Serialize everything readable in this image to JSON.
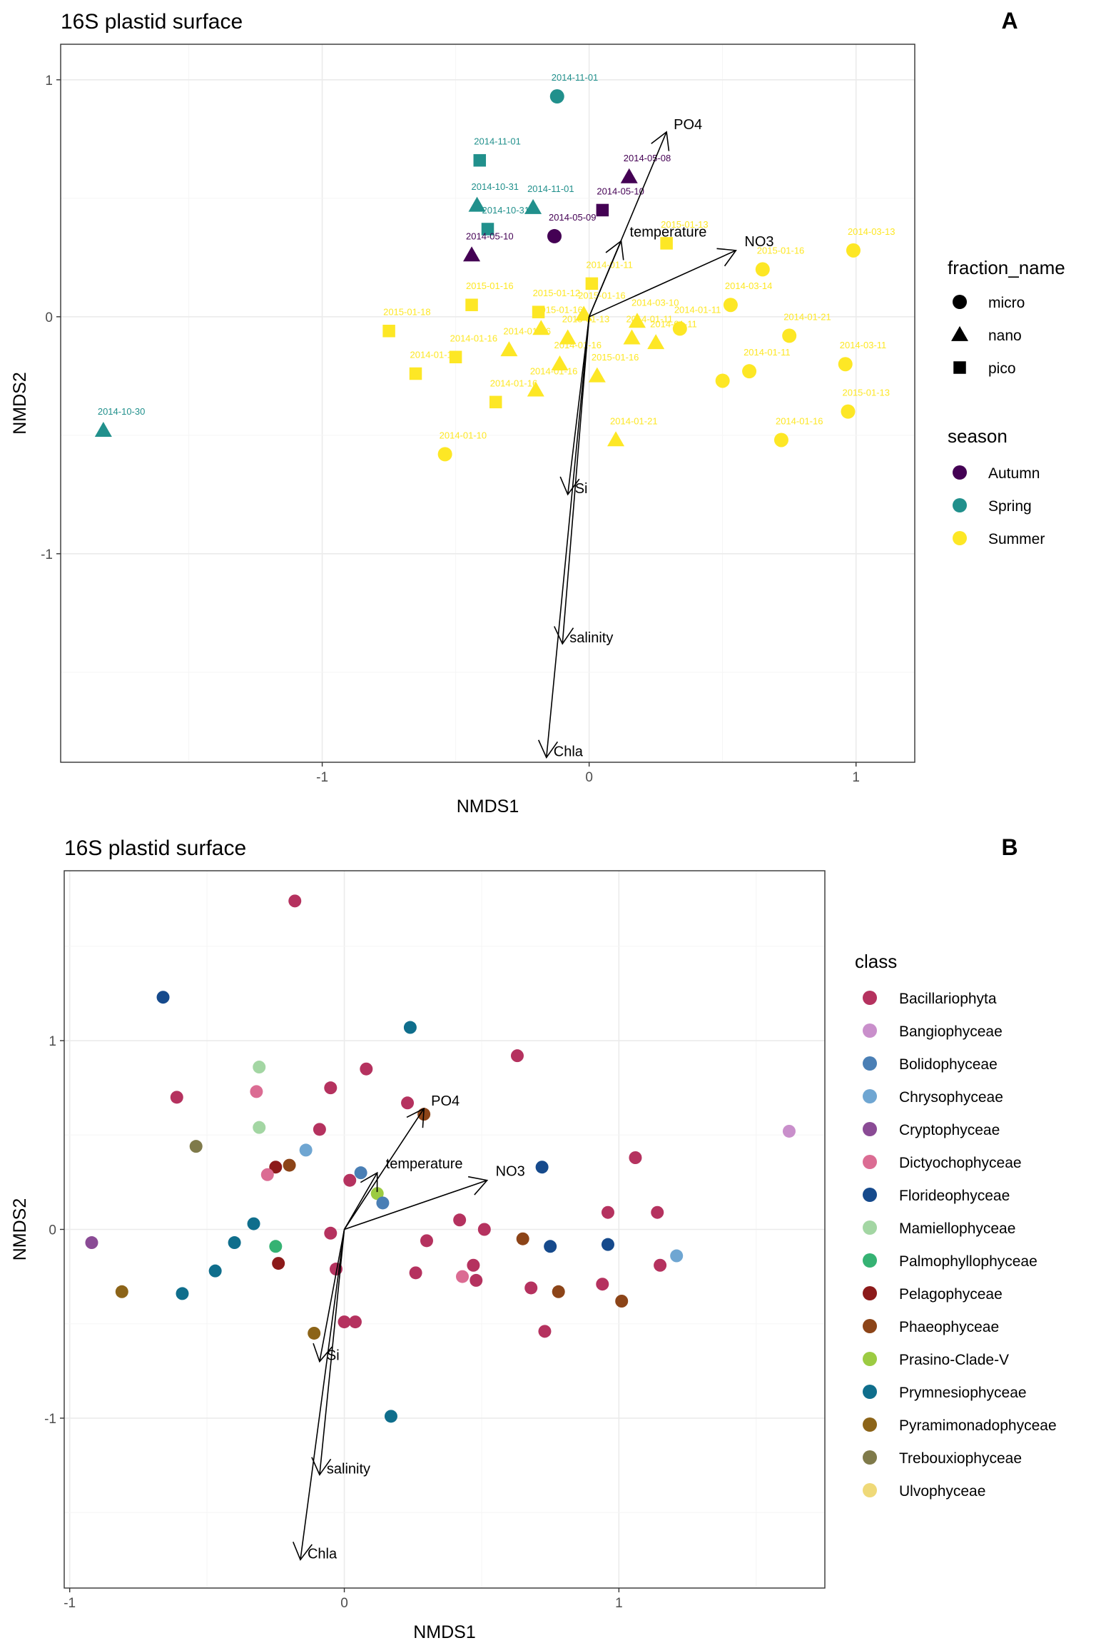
{
  "chart_data": [
    {
      "type": "scatter",
      "title": "16S plastid surface",
      "panel_tag": "A",
      "xlabel": "NMDS1",
      "ylabel": "NMDS2",
      "xlim": [
        -1.98,
        1.22
      ],
      "ylim": [
        -1.88,
        1.15
      ],
      "xticks": [
        -1,
        0,
        1
      ],
      "yticks": [
        -1,
        0,
        1
      ],
      "grid": true,
      "legend_placement": "right",
      "season_colors": {
        "Autumn": "#440154",
        "Spring": "#21908C",
        "Summer": "#FDE725"
      },
      "legends": [
        {
          "title": "fraction_name",
          "type": "shape",
          "entries": [
            {
              "label": "micro",
              "shape": "circle"
            },
            {
              "label": "nano",
              "shape": "triangle"
            },
            {
              "label": "pico",
              "shape": "square"
            }
          ]
        },
        {
          "title": "season",
          "type": "color",
          "entries": [
            {
              "label": "Autumn",
              "color": "#440154"
            },
            {
              "label": "Spring",
              "color": "#21908C"
            },
            {
              "label": "Summer",
              "color": "#FDE725"
            }
          ]
        }
      ],
      "arrows": [
        {
          "label": "PO4",
          "x": 0.29,
          "y": 0.78
        },
        {
          "label": "temperature",
          "x": 0.12,
          "y": 0.32
        },
        {
          "label": "NO3",
          "x": 0.55,
          "y": 0.28
        },
        {
          "label": "Si",
          "x": -0.08,
          "y": -0.75
        },
        {
          "label": "salinity",
          "x": -0.1,
          "y": -1.38
        },
        {
          "label": "Chla",
          "x": -0.16,
          "y": -1.86
        }
      ],
      "points": [
        {
          "x": -0.12,
          "y": 0.93,
          "shape": "circle",
          "season": "Spring",
          "label": "2014-11-01"
        },
        {
          "x": -0.41,
          "y": 0.66,
          "shape": "square",
          "season": "Spring",
          "label": "2014-11-01"
        },
        {
          "x": -0.42,
          "y": 0.47,
          "shape": "triangle",
          "season": "Spring",
          "label": "2014-10-31"
        },
        {
          "x": -0.21,
          "y": 0.46,
          "shape": "triangle",
          "season": "Spring",
          "label": "2014-11-01"
        },
        {
          "x": -0.38,
          "y": 0.37,
          "shape": "square",
          "season": "Spring",
          "label": "2014-10-31"
        },
        {
          "x": -1.82,
          "y": -0.48,
          "shape": "triangle",
          "season": "Spring",
          "label": "2014-10-30"
        },
        {
          "x": 0.15,
          "y": 0.59,
          "shape": "triangle",
          "season": "Autumn",
          "label": "2014-05-08"
        },
        {
          "x": 0.05,
          "y": 0.45,
          "shape": "square",
          "season": "Autumn",
          "label": "2014-05-10"
        },
        {
          "x": -0.13,
          "y": 0.34,
          "shape": "circle",
          "season": "Autumn",
          "label": "2014-05-09"
        },
        {
          "x": -0.44,
          "y": 0.26,
          "shape": "triangle",
          "season": "Autumn",
          "label": "2014-05-10"
        },
        {
          "x": 0.29,
          "y": 0.31,
          "shape": "square",
          "season": "Summer",
          "label": "2015-01-13"
        },
        {
          "x": 0.99,
          "y": 0.28,
          "shape": "circle",
          "season": "Summer",
          "label": "2014-03-13"
        },
        {
          "x": 0.65,
          "y": 0.2,
          "shape": "circle",
          "season": "Summer",
          "label": "2015-01-16"
        },
        {
          "x": 0.01,
          "y": 0.14,
          "shape": "square",
          "season": "Summer",
          "label": "2014-01-11"
        },
        {
          "x": 0.53,
          "y": 0.05,
          "shape": "circle",
          "season": "Summer",
          "label": "2014-03-14"
        },
        {
          "x": -0.44,
          "y": 0.05,
          "shape": "square",
          "season": "Summer",
          "label": "2015-01-16"
        },
        {
          "x": -0.19,
          "y": 0.02,
          "shape": "square",
          "season": "Summer",
          "label": "2015-01-12"
        },
        {
          "x": -0.02,
          "y": 0.01,
          "shape": "triangle",
          "season": "Summer",
          "label": "2015-01-16"
        },
        {
          "x": 0.18,
          "y": -0.02,
          "shape": "triangle",
          "season": "Summer",
          "label": "2014-03-10"
        },
        {
          "x": -0.75,
          "y": -0.06,
          "shape": "square",
          "season": "Summer",
          "label": "2015-01-18"
        },
        {
          "x": -0.18,
          "y": -0.05,
          "shape": "triangle",
          "season": "Summer",
          "label": "2015-01-16"
        },
        {
          "x": 0.34,
          "y": -0.05,
          "shape": "circle",
          "season": "Summer",
          "label": "2014-01-11"
        },
        {
          "x": 0.75,
          "y": -0.08,
          "shape": "circle",
          "season": "Summer",
          "label": "2014-01-21"
        },
        {
          "x": -0.08,
          "y": -0.09,
          "shape": "triangle",
          "season": "Summer",
          "label": "2015-01-13"
        },
        {
          "x": 0.16,
          "y": -0.09,
          "shape": "triangle",
          "season": "Summer",
          "label": "2014-01-11"
        },
        {
          "x": 0.25,
          "y": -0.11,
          "shape": "triangle",
          "season": "Summer",
          "label": "2014-01-11"
        },
        {
          "x": -0.5,
          "y": -0.17,
          "shape": "square",
          "season": "Summer",
          "label": "2014-01-16"
        },
        {
          "x": -0.3,
          "y": -0.14,
          "shape": "triangle",
          "season": "Summer",
          "label": "2014-01-16"
        },
        {
          "x": -0.11,
          "y": -0.2,
          "shape": "triangle",
          "season": "Summer",
          "label": "2014-01-16"
        },
        {
          "x": 0.96,
          "y": -0.2,
          "shape": "circle",
          "season": "Summer",
          "label": "2014-03-11"
        },
        {
          "x": -0.65,
          "y": -0.24,
          "shape": "square",
          "season": "Summer",
          "label": "2014-01-16"
        },
        {
          "x": 0.6,
          "y": -0.23,
          "shape": "circle",
          "season": "Summer",
          "label": "2014-01-11"
        },
        {
          "x": 0.03,
          "y": -0.25,
          "shape": "triangle",
          "season": "Summer",
          "label": "2015-01-16"
        },
        {
          "x": 0.5,
          "y": -0.27,
          "shape": "circle",
          "season": "Summer",
          "label": ""
        },
        {
          "x": -0.2,
          "y": -0.31,
          "shape": "triangle",
          "season": "Summer",
          "label": "2014-01-16"
        },
        {
          "x": -0.35,
          "y": -0.36,
          "shape": "square",
          "season": "Summer",
          "label": "2014-01-16"
        },
        {
          "x": 0.97,
          "y": -0.4,
          "shape": "circle",
          "season": "Summer",
          "label": "2015-01-13"
        },
        {
          "x": 0.1,
          "y": -0.52,
          "shape": "triangle",
          "season": "Summer",
          "label": "2014-01-21"
        },
        {
          "x": 0.72,
          "y": -0.52,
          "shape": "circle",
          "season": "Summer",
          "label": "2014-01-16"
        },
        {
          "x": -0.54,
          "y": -0.58,
          "shape": "circle",
          "season": "Summer",
          "label": "2014-01-10"
        }
      ]
    },
    {
      "type": "scatter",
      "title": "16S plastid surface",
      "panel_tag": "B",
      "xlabel": "NMDS1",
      "ylabel": "NMDS2",
      "xlim": [
        -1.02,
        1.75
      ],
      "ylim": [
        -1.9,
        1.9
      ],
      "xticks": [
        -1,
        0,
        1
      ],
      "yticks": [
        -1,
        0,
        1
      ],
      "grid": true,
      "legend_placement": "right",
      "legend": {
        "title": "class",
        "entries": [
          {
            "label": "Bacillariophyta",
            "color": "#B5325F"
          },
          {
            "label": "Bangiophyceae",
            "color": "#C98FCB"
          },
          {
            "label": "Bolidophyceae",
            "color": "#4A7FB5"
          },
          {
            "label": "Chrysophyceae",
            "color": "#6FA6D2"
          },
          {
            "label": "Cryptophyceae",
            "color": "#8A4B95"
          },
          {
            "label": "Dictyochophyceae",
            "color": "#DB6C93"
          },
          {
            "label": "Florideophyceae",
            "color": "#164A8C"
          },
          {
            "label": "Mamiellophyceae",
            "color": "#A3D6A3"
          },
          {
            "label": "Palmophyllophyceae",
            "color": "#35B273"
          },
          {
            "label": "Pelagophyceae",
            "color": "#8C1A1A"
          },
          {
            "label": "Phaeophyceae",
            "color": "#8C4418"
          },
          {
            "label": "Prasino-Clade-V",
            "color": "#9CCB42"
          },
          {
            "label": "Prymnesiophyceae",
            "color": "#0F6E8C"
          },
          {
            "label": "Pyramimonadophyceae",
            "color": "#8C6418"
          },
          {
            "label": "Trebouxiophyceae",
            "color": "#7F7A4A"
          },
          {
            "label": "Ulvophyceae",
            "color": "#EFD978"
          }
        ]
      },
      "arrows": [
        {
          "label": "PO4",
          "x": 0.29,
          "y": 0.64
        },
        {
          "label": "temperature",
          "x": 0.12,
          "y": 0.3
        },
        {
          "label": "NO3",
          "x": 0.52,
          "y": 0.26
        },
        {
          "label": "Si",
          "x": -0.09,
          "y": -0.7
        },
        {
          "label": "salinity",
          "x": -0.09,
          "y": -1.3
        },
        {
          "label": "Chla",
          "x": -0.16,
          "y": -1.75
        }
      ],
      "points": [
        {
          "x": -0.18,
          "y": 1.74,
          "class": "Bacillariophyta"
        },
        {
          "x": -0.66,
          "y": 1.23,
          "class": "Florideophyceae"
        },
        {
          "x": 0.24,
          "y": 1.07,
          "class": "Prymnesiophyceae"
        },
        {
          "x": 0.63,
          "y": 0.92,
          "class": "Bacillariophyta"
        },
        {
          "x": -0.31,
          "y": 0.86,
          "class": "Mamiellophyceae"
        },
        {
          "x": 0.08,
          "y": 0.85,
          "class": "Bacillariophyta"
        },
        {
          "x": -0.05,
          "y": 0.75,
          "class": "Bacillariophyta"
        },
        {
          "x": -0.32,
          "y": 0.73,
          "class": "Dictyochophyceae"
        },
        {
          "x": -0.61,
          "y": 0.7,
          "class": "Bacillariophyta"
        },
        {
          "x": 0.23,
          "y": 0.67,
          "class": "Bacillariophyta"
        },
        {
          "x": 0.29,
          "y": 0.61,
          "class": "Phaeophyceae"
        },
        {
          "x": 1.62,
          "y": 0.52,
          "class": "Bangiophyceae"
        },
        {
          "x": -0.31,
          "y": 0.54,
          "class": "Mamiellophyceae"
        },
        {
          "x": -0.09,
          "y": 0.53,
          "class": "Bacillariophyta"
        },
        {
          "x": -0.54,
          "y": 0.44,
          "class": "Trebouxiophyceae"
        },
        {
          "x": -0.14,
          "y": 0.42,
          "class": "Chrysophyceae"
        },
        {
          "x": 1.06,
          "y": 0.38,
          "class": "Bacillariophyta"
        },
        {
          "x": -0.2,
          "y": 0.34,
          "class": "Phaeophyceae"
        },
        {
          "x": -0.25,
          "y": 0.33,
          "class": "Pelagophyceae"
        },
        {
          "x": 0.72,
          "y": 0.33,
          "class": "Florideophyceae"
        },
        {
          "x": 0.06,
          "y": 0.3,
          "class": "Bolidophyceae"
        },
        {
          "x": -0.28,
          "y": 0.29,
          "class": "Dictyochophyceae"
        },
        {
          "x": 0.02,
          "y": 0.26,
          "class": "Bacillariophyta"
        },
        {
          "x": 0.12,
          "y": 0.19,
          "class": "Prasino-Clade-V"
        },
        {
          "x": 0.14,
          "y": 0.14,
          "class": "Bolidophyceae"
        },
        {
          "x": 0.96,
          "y": 0.09,
          "class": "Bacillariophyta"
        },
        {
          "x": 1.14,
          "y": 0.09,
          "class": "Bacillariophyta"
        },
        {
          "x": 0.42,
          "y": 0.05,
          "class": "Bacillariophyta"
        },
        {
          "x": -0.33,
          "y": 0.03,
          "class": "Prymnesiophyceae"
        },
        {
          "x": 0.51,
          "y": 0.0,
          "class": "Bacillariophyta"
        },
        {
          "x": -0.05,
          "y": -0.02,
          "class": "Bacillariophyta"
        },
        {
          "x": 0.65,
          "y": -0.05,
          "class": "Phaeophyceae"
        },
        {
          "x": 0.3,
          "y": -0.06,
          "class": "Bacillariophyta"
        },
        {
          "x": 0.75,
          "y": -0.09,
          "class": "Florideophyceae"
        },
        {
          "x": 0.96,
          "y": -0.08,
          "class": "Florideophyceae"
        },
        {
          "x": -0.4,
          "y": -0.07,
          "class": "Prymnesiophyceae"
        },
        {
          "x": -0.92,
          "y": -0.07,
          "class": "Cryptophyceae"
        },
        {
          "x": -0.25,
          "y": -0.09,
          "class": "Palmophyllophyceae"
        },
        {
          "x": 1.21,
          "y": -0.14,
          "class": "Chrysophyceae"
        },
        {
          "x": -0.24,
          "y": -0.18,
          "class": "Pelagophyceae"
        },
        {
          "x": 0.47,
          "y": -0.19,
          "class": "Bacillariophyta"
        },
        {
          "x": 1.15,
          "y": -0.19,
          "class": "Bacillariophyta"
        },
        {
          "x": -0.47,
          "y": -0.22,
          "class": "Prymnesiophyceae"
        },
        {
          "x": -0.03,
          "y": -0.21,
          "class": "Bacillariophyta"
        },
        {
          "x": 0.26,
          "y": -0.23,
          "class": "Bacillariophyta"
        },
        {
          "x": 0.43,
          "y": -0.25,
          "class": "Dictyochophyceae"
        },
        {
          "x": 0.48,
          "y": -0.27,
          "class": "Bacillariophyta"
        },
        {
          "x": 0.94,
          "y": -0.29,
          "class": "Bacillariophyta"
        },
        {
          "x": 0.68,
          "y": -0.31,
          "class": "Bacillariophyta"
        },
        {
          "x": 0.78,
          "y": -0.33,
          "class": "Phaeophyceae"
        },
        {
          "x": -0.81,
          "y": -0.33,
          "class": "Pyramimonadophyceae"
        },
        {
          "x": -0.59,
          "y": -0.34,
          "class": "Prymnesiophyceae"
        },
        {
          "x": 1.01,
          "y": -0.38,
          "class": "Phaeophyceae"
        },
        {
          "x": 0.0,
          "y": -0.49,
          "class": "Bacillariophyta"
        },
        {
          "x": 0.04,
          "y": -0.49,
          "class": "Bacillariophyta"
        },
        {
          "x": 0.73,
          "y": -0.54,
          "class": "Bacillariophyta"
        },
        {
          "x": -0.11,
          "y": -0.55,
          "class": "Pyramimonadophyceae"
        },
        {
          "x": 0.17,
          "y": -0.99,
          "class": "Prymnesiophyceae"
        }
      ]
    }
  ]
}
